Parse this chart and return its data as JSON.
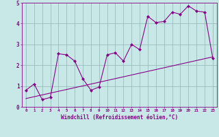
{
  "xlabel": "Windchill (Refroidissement éolien,°C)",
  "xlim": [
    -0.5,
    23.5
  ],
  "ylim": [
    0,
    5
  ],
  "xticks": [
    0,
    1,
    2,
    3,
    4,
    5,
    6,
    7,
    8,
    9,
    10,
    11,
    12,
    13,
    14,
    15,
    16,
    17,
    18,
    19,
    20,
    21,
    22,
    23
  ],
  "yticks": [
    0,
    1,
    2,
    3,
    4,
    5
  ],
  "bg_color": "#c8e8e8",
  "line_color": "#880088",
  "grid_color": "#99bbbb",
  "scatter_x": [
    0,
    1,
    2,
    3,
    4,
    5,
    6,
    7,
    8,
    9,
    10,
    11,
    12,
    13,
    14,
    15,
    16,
    17,
    18,
    19,
    20,
    21,
    22,
    23
  ],
  "scatter_y": [
    0.8,
    1.1,
    0.35,
    0.45,
    2.55,
    2.5,
    2.2,
    1.35,
    0.8,
    0.95,
    2.5,
    2.6,
    2.2,
    3.0,
    2.75,
    4.35,
    4.05,
    4.1,
    4.55,
    4.45,
    4.85,
    4.6,
    4.55,
    2.35
  ],
  "trend_x": [
    0,
    23
  ],
  "trend_y": [
    0.4,
    2.4
  ]
}
